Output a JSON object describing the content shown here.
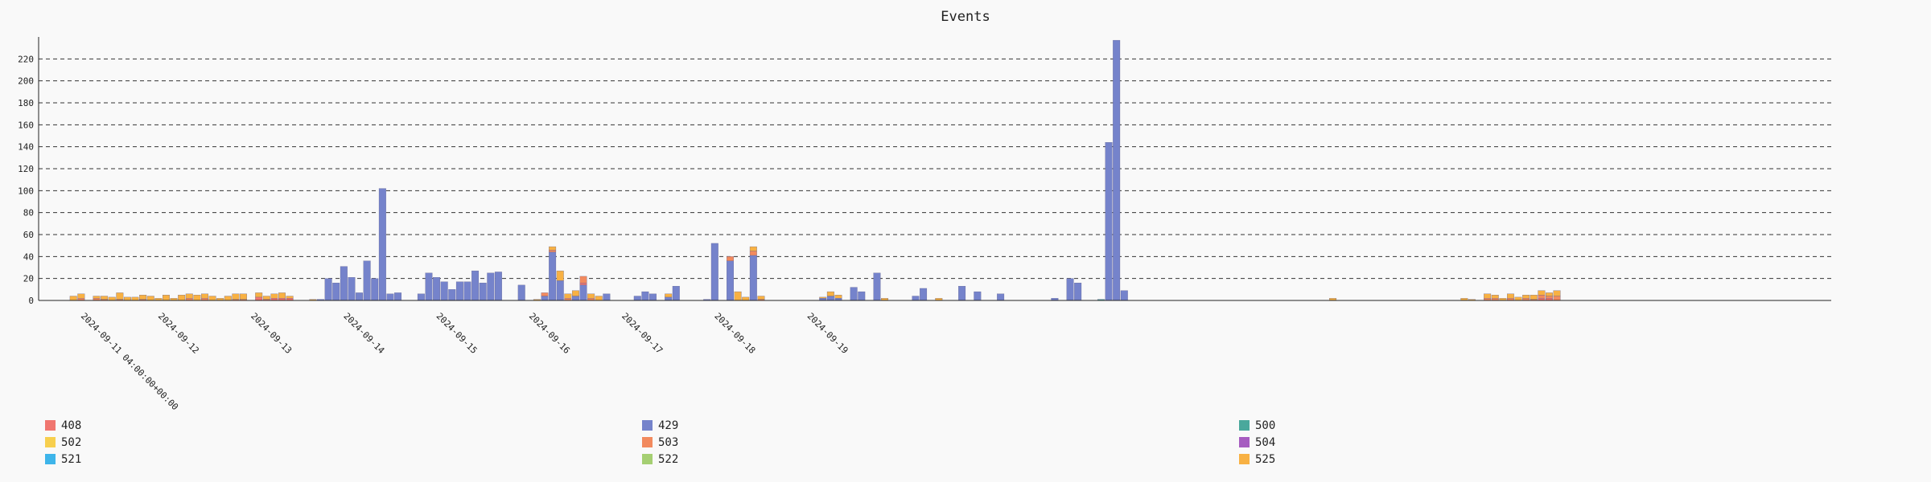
{
  "chart_data": {
    "type": "bar",
    "stacked": true,
    "title": "Events",
    "xlabel": "",
    "ylabel": "",
    "ylim": [
      0,
      240
    ],
    "yticks": [
      0,
      20,
      40,
      60,
      80,
      100,
      120,
      140,
      160,
      180,
      200,
      220
    ],
    "grid": true,
    "legend_position": "bottom",
    "x_start": "2024-09-11 04:00",
    "bin_hours": 2,
    "date_labels": [
      {
        "text": "2024-09-11 04:00:00+00:00",
        "bin": 0
      },
      {
        "text": "2024-09-12",
        "bin": 10
      },
      {
        "text": "2024-09-13",
        "bin": 22
      },
      {
        "text": "2024-09-14",
        "bin": 34
      },
      {
        "text": "2024-09-15",
        "bin": 46
      },
      {
        "text": "2024-09-16",
        "bin": 58
      },
      {
        "text": "2024-09-17",
        "bin": 70
      },
      {
        "text": "2024-09-18",
        "bin": 82
      },
      {
        "text": "2024-09-19",
        "bin": 94
      }
    ],
    "series": [
      {
        "name": "408",
        "color": "#f0766f"
      },
      {
        "name": "429",
        "color": "#7583cb"
      },
      {
        "name": "500",
        "color": "#4aa89c"
      },
      {
        "name": "502",
        "color": "#f7cf4e"
      },
      {
        "name": "503",
        "color": "#f28a5e"
      },
      {
        "name": "504",
        "color": "#a65cc0"
      },
      {
        "name": "521",
        "color": "#3eb5ea"
      },
      {
        "name": "522",
        "color": "#a5cf72"
      },
      {
        "name": "525",
        "color": "#f8b143"
      }
    ],
    "bars": [
      {
        "x": 4,
        "v": {
          "525": 4
        }
      },
      {
        "x": 5,
        "v": {
          "503": 2,
          "525": 4
        }
      },
      {
        "x": 7,
        "v": {
          "503": 2,
          "525": 2
        }
      },
      {
        "x": 8,
        "v": {
          "503": 1,
          "525": 3
        }
      },
      {
        "x": 9,
        "v": {
          "525": 3
        }
      },
      {
        "x": 10,
        "v": {
          "503": 1,
          "525": 6
        }
      },
      {
        "x": 11,
        "v": {
          "525": 3
        }
      },
      {
        "x": 12,
        "v": {
          "525": 3
        }
      },
      {
        "x": 13,
        "v": {
          "503": 1,
          "525": 4
        }
      },
      {
        "x": 14,
        "v": {
          "525": 4
        }
      },
      {
        "x": 15,
        "v": {
          "525": 2
        }
      },
      {
        "x": 16,
        "v": {
          "525": 5
        }
      },
      {
        "x": 17,
        "v": {
          "525": 2
        }
      },
      {
        "x": 18,
        "v": {
          "525": 5
        }
      },
      {
        "x": 19,
        "v": {
          "503": 2,
          "525": 4
        }
      },
      {
        "x": 20,
        "v": {
          "525": 5
        }
      },
      {
        "x": 21,
        "v": {
          "503": 2,
          "525": 4
        }
      },
      {
        "x": 22,
        "v": {
          "525": 4
        }
      },
      {
        "x": 23,
        "v": {
          "525": 2
        }
      },
      {
        "x": 24,
        "v": {
          "525": 4
        }
      },
      {
        "x": 25,
        "v": {
          "503": 1,
          "525": 5
        }
      },
      {
        "x": 26,
        "v": {
          "503": 1,
          "525": 5
        }
      },
      {
        "x": 28,
        "v": {
          "408": 3,
          "525": 4
        }
      },
      {
        "x": 29,
        "v": {
          "408": 1,
          "525": 3
        }
      },
      {
        "x": 30,
        "v": {
          "408": 2,
          "525": 4
        }
      },
      {
        "x": 31,
        "v": {
          "408": 2,
          "525": 5
        }
      },
      {
        "x": 32,
        "v": {
          "408": 2,
          "525": 2
        }
      },
      {
        "x": 35,
        "v": {
          "525": 1
        }
      },
      {
        "x": 36,
        "v": {
          "429": 1
        }
      },
      {
        "x": 37,
        "v": {
          "429": 20
        }
      },
      {
        "x": 38,
        "v": {
          "429": 16
        }
      },
      {
        "x": 39,
        "v": {
          "429": 31
        }
      },
      {
        "x": 40,
        "v": {
          "429": 21
        }
      },
      {
        "x": 41,
        "v": {
          "429": 7
        }
      },
      {
        "x": 42,
        "v": {
          "429": 36
        }
      },
      {
        "x": 43,
        "v": {
          "429": 20
        }
      },
      {
        "x": 44,
        "v": {
          "429": 102
        }
      },
      {
        "x": 45,
        "v": {
          "429": 6
        }
      },
      {
        "x": 46,
        "v": {
          "429": 7
        }
      },
      {
        "x": 49,
        "v": {
          "429": 6
        }
      },
      {
        "x": 50,
        "v": {
          "429": 25
        }
      },
      {
        "x": 51,
        "v": {
          "429": 21
        }
      },
      {
        "x": 52,
        "v": {
          "429": 17
        }
      },
      {
        "x": 53,
        "v": {
          "429": 10
        }
      },
      {
        "x": 54,
        "v": {
          "429": 17
        }
      },
      {
        "x": 55,
        "v": {
          "429": 17
        }
      },
      {
        "x": 56,
        "v": {
          "429": 27
        }
      },
      {
        "x": 57,
        "v": {
          "429": 16
        }
      },
      {
        "x": 58,
        "v": {
          "429": 25
        }
      },
      {
        "x": 59,
        "v": {
          "429": 26
        }
      },
      {
        "x": 62,
        "v": {
          "429": 14
        }
      },
      {
        "x": 64,
        "v": {
          "525": 1
        }
      },
      {
        "x": 65,
        "v": {
          "429": 4,
          "503": 3
        }
      },
      {
        "x": 66,
        "v": {
          "429": 44,
          "503": 2,
          "525": 3
        }
      },
      {
        "x": 67,
        "v": {
          "429": 18,
          "525": 9
        }
      },
      {
        "x": 68,
        "v": {
          "503": 2,
          "525": 4
        }
      },
      {
        "x": 69,
        "v": {
          "429": 4,
          "525": 5
        }
      },
      {
        "x": 70,
        "v": {
          "429": 14,
          "503": 6,
          "408": 2
        }
      },
      {
        "x": 71,
        "v": {
          "503": 2,
          "525": 4
        }
      },
      {
        "x": 72,
        "v": {
          "525": 4
        }
      },
      {
        "x": 73,
        "v": {
          "429": 6
        }
      },
      {
        "x": 77,
        "v": {
          "429": 4
        }
      },
      {
        "x": 78,
        "v": {
          "429": 8
        }
      },
      {
        "x": 79,
        "v": {
          "429": 6
        }
      },
      {
        "x": 81,
        "v": {
          "429": 3,
          "525": 3
        }
      },
      {
        "x": 82,
        "v": {
          "429": 13
        }
      },
      {
        "x": 86,
        "v": {
          "429": 1
        }
      },
      {
        "x": 87,
        "v": {
          "429": 52
        }
      },
      {
        "x": 89,
        "v": {
          "429": 36,
          "503": 4
        }
      },
      {
        "x": 90,
        "v": {
          "525": 8
        }
      },
      {
        "x": 91,
        "v": {
          "525": 3
        }
      },
      {
        "x": 92,
        "v": {
          "429": 41,
          "503": 4,
          "525": 4
        }
      },
      {
        "x": 93,
        "v": {
          "503": 1,
          "525": 3
        }
      },
      {
        "x": 101,
        "v": {
          "429": 2,
          "525": 1
        }
      },
      {
        "x": 102,
        "v": {
          "429": 4,
          "525": 4
        }
      },
      {
        "x": 103,
        "v": {
          "429": 2,
          "525": 3
        }
      },
      {
        "x": 105,
        "v": {
          "429": 12
        }
      },
      {
        "x": 106,
        "v": {
          "429": 8
        }
      },
      {
        "x": 108,
        "v": {
          "429": 25
        }
      },
      {
        "x": 109,
        "v": {
          "525": 2
        }
      },
      {
        "x": 113,
        "v": {
          "429": 4
        }
      },
      {
        "x": 114,
        "v": {
          "429": 11
        }
      },
      {
        "x": 116,
        "v": {
          "525": 2
        }
      },
      {
        "x": 119,
        "v": {
          "429": 13
        }
      },
      {
        "x": 121,
        "v": {
          "429": 8
        }
      },
      {
        "x": 124,
        "v": {
          "429": 6
        }
      },
      {
        "x": 131,
        "v": {
          "429": 2
        }
      },
      {
        "x": 133,
        "v": {
          "429": 20
        }
      },
      {
        "x": 134,
        "v": {
          "429": 16
        }
      },
      {
        "x": 137,
        "v": {
          "500": 1
        }
      },
      {
        "x": 138,
        "v": {
          "429": 144
        }
      },
      {
        "x": 139,
        "v": {
          "429": 237
        }
      },
      {
        "x": 140,
        "v": {
          "429": 9
        }
      },
      {
        "x": 167,
        "v": {
          "525": 2
        }
      },
      {
        "x": 184,
        "v": {
          "525": 2
        }
      },
      {
        "x": 185,
        "v": {
          "525": 1
        }
      },
      {
        "x": 187,
        "v": {
          "503": 2,
          "525": 4
        }
      },
      {
        "x": 188,
        "v": {
          "503": 2,
          "525": 3
        }
      },
      {
        "x": 189,
        "v": {
          "525": 2
        }
      },
      {
        "x": 190,
        "v": {
          "503": 2,
          "525": 4
        }
      },
      {
        "x": 191,
        "v": {
          "525": 3
        }
      },
      {
        "x": 192,
        "v": {
          "503": 2,
          "525": 3
        }
      },
      {
        "x": 193,
        "v": {
          "503": 1,
          "525": 4
        }
      },
      {
        "x": 194,
        "v": {
          "408": 2,
          "503": 3,
          "525": 4
        }
      },
      {
        "x": 195,
        "v": {
          "408": 2,
          "503": 2,
          "525": 3
        }
      },
      {
        "x": 196,
        "v": {
          "503": 4,
          "525": 5
        }
      }
    ]
  }
}
